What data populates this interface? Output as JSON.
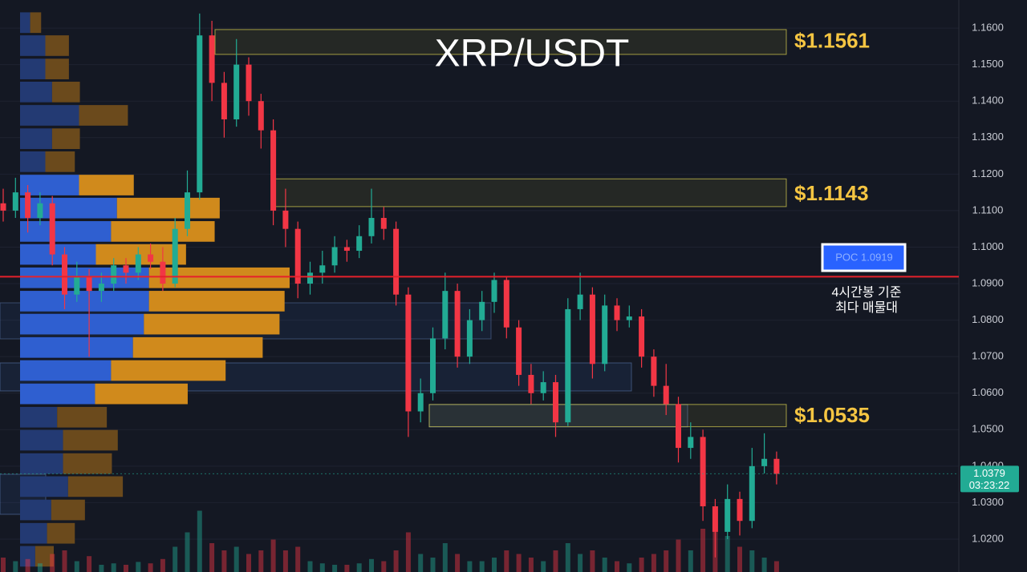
{
  "chart_data": {
    "type": "candlestick",
    "title": "XRP/USDT",
    "ylim": [
      1.011,
      1.1677
    ],
    "yticks": [
      {
        "value": 1.16,
        "label": "1.1600"
      },
      {
        "value": 1.15,
        "label": "1.1500"
      },
      {
        "value": 1.14,
        "label": "1.1400"
      },
      {
        "value": 1.13,
        "label": "1.1300"
      },
      {
        "value": 1.12,
        "label": "1.1200"
      },
      {
        "value": 1.11,
        "label": "1.1100"
      },
      {
        "value": 1.1,
        "label": "1.1000"
      },
      {
        "value": 1.09,
        "label": "1.0900"
      },
      {
        "value": 1.08,
        "label": "1.0800"
      },
      {
        "value": 1.07,
        "label": "1.0700"
      },
      {
        "value": 1.06,
        "label": "1.0600"
      },
      {
        "value": 1.05,
        "label": "1.0500"
      },
      {
        "value": 1.04,
        "label": "1.0400"
      },
      {
        "value": 1.03,
        "label": "1.0300"
      },
      {
        "value": 1.02,
        "label": "1.0200"
      }
    ],
    "up_color": "#22ab94",
    "down_color": "#f23645",
    "open": [
      1.112,
      1.11,
      1.115,
      1.108,
      1.112,
      1.098,
      1.087,
      1.092,
      1.088,
      1.09,
      1.095,
      1.093,
      1.098,
      1.096,
      1.09,
      1.105,
      1.115,
      1.158,
      1.145,
      1.135,
      1.15,
      1.14,
      1.132,
      1.11,
      1.105,
      1.09,
      1.093,
      1.095,
      1.1,
      1.099,
      1.103,
      1.108,
      1.105,
      1.087,
      1.055,
      1.06,
      1.075,
      1.088,
      1.07,
      1.08,
      1.085,
      1.091,
      1.078,
      1.065,
      1.06,
      1.063,
      1.052,
      1.083,
      1.087,
      1.068,
      1.084,
      1.08,
      1.081,
      1.07,
      1.062,
      1.057,
      1.045,
      1.048,
      1.029,
      1.022,
      1.031,
      1.025,
      1.04,
      1.042
    ],
    "high": [
      1.116,
      1.119,
      1.117,
      1.115,
      1.114,
      1.1,
      1.096,
      1.094,
      1.093,
      1.097,
      1.097,
      1.1,
      1.101,
      1.1,
      1.108,
      1.121,
      1.164,
      1.162,
      1.148,
      1.157,
      1.152,
      1.142,
      1.135,
      1.116,
      1.107,
      1.096,
      1.099,
      1.103,
      1.102,
      1.106,
      1.116,
      1.111,
      1.107,
      1.089,
      1.064,
      1.078,
      1.093,
      1.09,
      1.083,
      1.088,
      1.093,
      1.092,
      1.08,
      1.068,
      1.066,
      1.065,
      1.086,
      1.093,
      1.089,
      1.087,
      1.086,
      1.084,
      1.083,
      1.072,
      1.068,
      1.059,
      1.052,
      1.05,
      1.031,
      1.035,
      1.033,
      1.045,
      1.049,
      1.044
    ],
    "low": [
      1.107,
      1.108,
      1.104,
      1.106,
      1.095,
      1.083,
      1.085,
      1.07,
      1.085,
      1.088,
      1.09,
      1.091,
      1.094,
      1.088,
      1.089,
      1.103,
      1.113,
      1.14,
      1.13,
      1.133,
      1.136,
      1.127,
      1.106,
      1.1,
      1.086,
      1.087,
      1.09,
      1.093,
      1.096,
      1.097,
      1.101,
      1.102,
      1.084,
      1.048,
      1.052,
      1.058,
      1.072,
      1.067,
      1.068,
      1.077,
      1.082,
      1.075,
      1.062,
      1.057,
      1.058,
      1.048,
      1.051,
      1.08,
      1.064,
      1.066,
      1.077,
      1.078,
      1.067,
      1.059,
      1.054,
      1.041,
      1.042,
      1.025,
      1.015,
      1.02,
      1.021,
      1.023,
      1.038,
      1.035
    ],
    "close": [
      1.11,
      1.115,
      1.108,
      1.112,
      1.098,
      1.087,
      1.092,
      1.088,
      1.09,
      1.095,
      1.093,
      1.098,
      1.096,
      1.09,
      1.105,
      1.115,
      1.158,
      1.145,
      1.135,
      1.15,
      1.14,
      1.132,
      1.11,
      1.105,
      1.09,
      1.093,
      1.095,
      1.1,
      1.099,
      1.103,
      1.108,
      1.105,
      1.087,
      1.055,
      1.06,
      1.075,
      1.088,
      1.07,
      1.08,
      1.085,
      1.091,
      1.078,
      1.065,
      1.06,
      1.063,
      1.052,
      1.083,
      1.087,
      1.068,
      1.084,
      1.08,
      1.081,
      1.07,
      1.062,
      1.057,
      1.045,
      1.048,
      1.029,
      1.022,
      1.031,
      1.025,
      1.04,
      1.042,
      1.0379
    ],
    "volume": [
      20,
      15,
      18,
      12,
      25,
      30,
      15,
      22,
      10,
      12,
      10,
      14,
      12,
      18,
      35,
      55,
      85,
      40,
      30,
      35,
      25,
      30,
      45,
      30,
      35,
      15,
      12,
      10,
      10,
      12,
      18,
      15,
      30,
      55,
      25,
      20,
      40,
      25,
      15,
      15,
      20,
      30,
      25,
      20,
      15,
      30,
      40,
      25,
      30,
      20,
      15,
      12,
      20,
      25,
      30,
      45,
      30,
      60,
      70,
      50,
      35,
      30,
      20,
      15
    ],
    "profile": {
      "price": [
        1.1615,
        1.1552,
        1.1488,
        1.1425,
        1.1361,
        1.1297,
        1.1234,
        1.117,
        1.1107,
        1.1043,
        1.098,
        1.0916,
        1.0852,
        1.0789,
        1.0725,
        1.0662,
        1.0598,
        1.0534,
        1.0471,
        1.0407,
        1.0344,
        1.028,
        1.0216,
        1.0153
      ],
      "buy": [
        12,
        30,
        30,
        38,
        70,
        38,
        30,
        70,
        115,
        108,
        90,
        153,
        153,
        147,
        134,
        108,
        89,
        44,
        51,
        51,
        57,
        37,
        32,
        18
      ],
      "sell": [
        13,
        28,
        28,
        33,
        58,
        33,
        35,
        65,
        122,
        123,
        107,
        167,
        161,
        161,
        154,
        136,
        110,
        59,
        65,
        58,
        65,
        40,
        33,
        22
      ],
      "value_area": [
        1.0598,
        1.117
      ]
    },
    "zones": [
      {
        "value": 1.1561,
        "label": "$1.1561",
        "low": 1.1528,
        "high": 1.1596
      },
      {
        "value": 1.1143,
        "label": "$1.1143",
        "low": 1.1111,
        "high": 1.1187
      },
      {
        "value": 1.0535,
        "label": "$1.0535",
        "low": 1.0508,
        "high": 1.0569
      }
    ],
    "poc": {
      "value": 1.0919,
      "label": "POC  1.0919",
      "note": [
        "4시간봉 기준",
        "최다 매물대"
      ]
    },
    "last_price": {
      "value": 1.0379,
      "label": "1.0379",
      "countdown": "03:23:22"
    }
  }
}
